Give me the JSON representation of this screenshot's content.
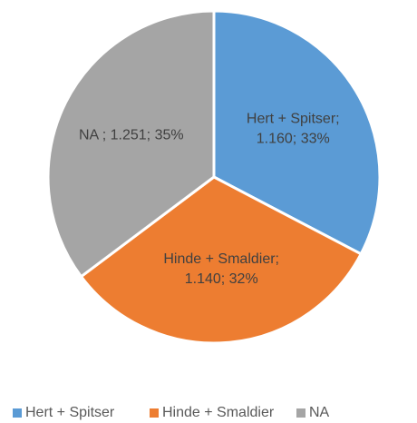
{
  "chart_data": {
    "type": "pie",
    "categories": [
      "Hert + Spitser",
      "Hinde + Smaldier",
      "NA"
    ],
    "values": [
      1160,
      1140,
      1251
    ],
    "value_labels": [
      [
        "Hert + Spitser;",
        "1.160; 33%"
      ],
      [
        "Hinde + Smaldier;",
        "1.140; 32%"
      ],
      [
        "NA ; 1.251; 35%"
      ]
    ],
    "colors": [
      "#5b9bd5",
      "#ed7d31",
      "#a5a5a5"
    ],
    "legend": "bottom"
  }
}
